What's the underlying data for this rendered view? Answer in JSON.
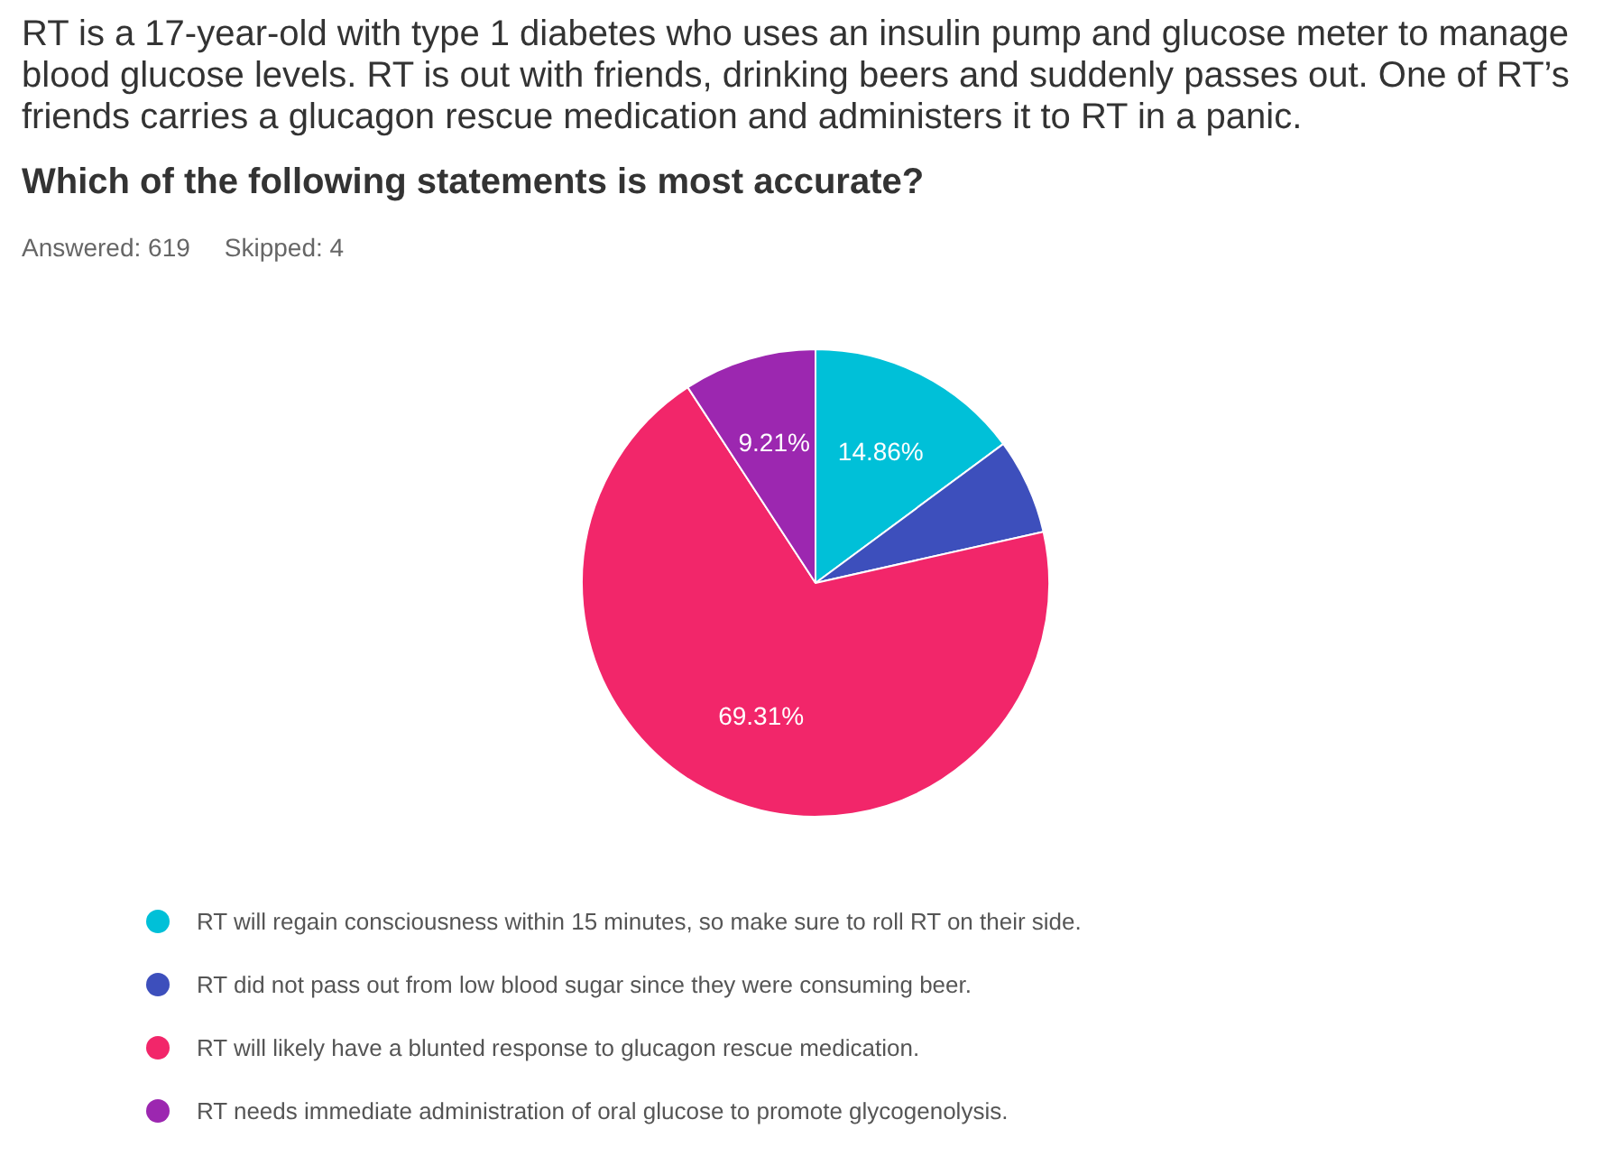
{
  "chart_data": {
    "type": "pie",
    "title": "RT is a 17-year-old with type 1 diabetes who uses an insulin pump and glucose meter to manage blood glucose levels. RT is out with friends, drinking beers and suddenly passes out. One of RT’s friends carries a glucagon rescue medication and administers it to RT in a panic.",
    "subtitle": "Which of the following statements is most accurate?",
    "annotations": [
      "Answered: 619",
      "Skipped: 4"
    ],
    "categories": [
      "RT will regain consciousness within 15 minutes, so make sure to roll RT on their side.",
      "RT did not pass out from low blood sugar since they were consuming beer.",
      "RT will likely have a blunted response to glucagon rescue medication.",
      "RT needs immediate administration of oral glucose to promote glycogenolysis."
    ],
    "values": [
      14.86,
      6.62,
      69.31,
      9.21
    ],
    "colors": [
      "#00c0d8",
      "#3d4fbc",
      "#f2266a",
      "#9c27b0"
    ],
    "value_labels": [
      "14.86%",
      null,
      "69.31%",
      "9.21%"
    ],
    "legend": "bottom"
  }
}
